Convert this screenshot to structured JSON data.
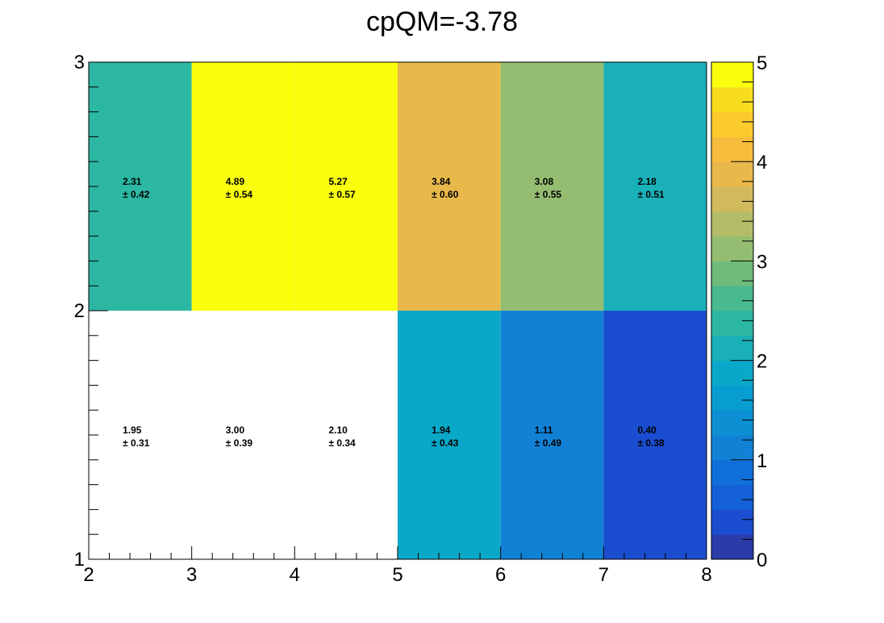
{
  "chart_data": {
    "type": "heatmap",
    "title": "cpQM=-3.78",
    "xlabel": "",
    "ylabel": "",
    "x_edges": [
      2,
      3,
      4,
      5,
      6,
      7,
      8
    ],
    "y_edges": [
      1,
      2,
      3
    ],
    "xlim": [
      2,
      8
    ],
    "ylim": [
      1,
      3
    ],
    "x_ticks": [
      "2",
      "3",
      "4",
      "5",
      "6",
      "7",
      "8"
    ],
    "y_ticks": [
      "1",
      "2",
      "3"
    ],
    "zlim": [
      0,
      5
    ],
    "z_ticks": [
      "0",
      "1",
      "2",
      "3",
      "4",
      "5"
    ],
    "grid": false,
    "legend": "colorbar-right",
    "palette": [
      "#2b3ba8",
      "#1b4dd0",
      "#1460d6",
      "#0f70da",
      "#1181d6",
      "#0d90d3",
      "#079dd1",
      "#0aa8c8",
      "#1ab0b8",
      "#2cb7a2",
      "#49b98e",
      "#6fbb7c",
      "#94bd71",
      "#b5bc69",
      "#d1ba5c",
      "#e8b84a",
      "#f6bd3c",
      "#fbcb2d",
      "#f8dd1f",
      "#f9ff0d"
    ],
    "cells": [
      {
        "x": 2,
        "y": 1,
        "value": 1.95,
        "value_label": "1.95",
        "error_label": "± 0.31",
        "empty": true
      },
      {
        "x": 3,
        "y": 1,
        "value": 3.0,
        "value_label": "3.00",
        "error_label": "± 0.39",
        "empty": true
      },
      {
        "x": 4,
        "y": 1,
        "value": 2.1,
        "value_label": "2.10",
        "error_label": "± 0.34",
        "empty": true
      },
      {
        "x": 5,
        "y": 1,
        "value": 1.94,
        "value_label": "1.94",
        "error_label": "± 0.43",
        "empty": false
      },
      {
        "x": 6,
        "y": 1,
        "value": 1.11,
        "value_label": "1.11",
        "error_label": "± 0.49",
        "empty": false
      },
      {
        "x": 7,
        "y": 1,
        "value": 0.4,
        "value_label": "0.40",
        "error_label": "± 0.38",
        "empty": false
      },
      {
        "x": 2,
        "y": 2,
        "value": 2.31,
        "value_label": "2.31",
        "error_label": "± 0.42",
        "empty": false
      },
      {
        "x": 3,
        "y": 2,
        "value": 4.89,
        "value_label": "4.89",
        "error_label": "± 0.54",
        "empty": false
      },
      {
        "x": 4,
        "y": 2,
        "value": 5.27,
        "value_label": "5.27",
        "error_label": "± 0.57",
        "empty": false
      },
      {
        "x": 5,
        "y": 2,
        "value": 3.84,
        "value_label": "3.84",
        "error_label": "± 0.60",
        "empty": false
      },
      {
        "x": 6,
        "y": 2,
        "value": 3.08,
        "value_label": "3.08",
        "error_label": "± 0.55",
        "empty": false
      },
      {
        "x": 7,
        "y": 2,
        "value": 2.18,
        "value_label": "2.18",
        "error_label": "± 0.51",
        "empty": false
      }
    ]
  }
}
